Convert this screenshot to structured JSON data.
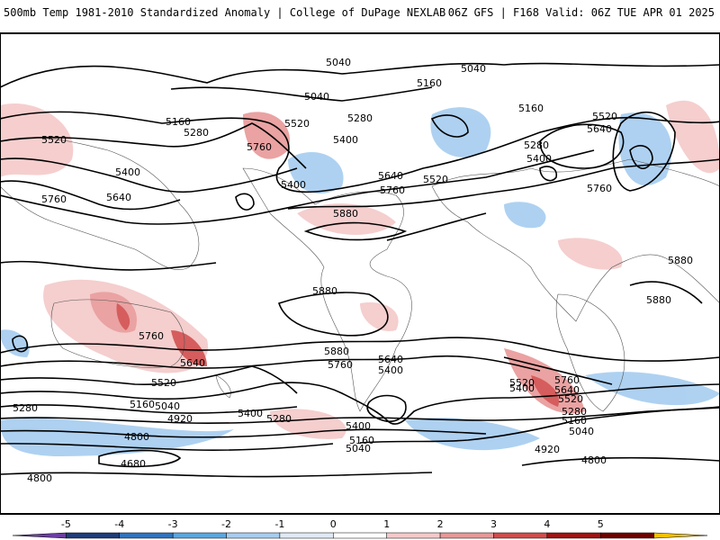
{
  "header": {
    "title": "500mb Temp 1981-2010 Standardized Anomaly | College of DuPage NEXLAB",
    "run_info": "06Z GFS | F168 Valid: 06Z TUE APR 01 2025"
  },
  "colorbar": {
    "ticks": [
      "-5",
      "-4",
      "-3",
      "-2",
      "-1",
      "0",
      "1",
      "2",
      "3",
      "4",
      "5"
    ],
    "colors": [
      "#6a3fa0",
      "#1f3c7a",
      "#2f74c0",
      "#5aa6e0",
      "#a6cdf0",
      "#dfeaf6",
      "#ffffff",
      "#f5c9c9",
      "#e89898",
      "#d24c4c",
      "#a01414",
      "#6e0000",
      "#f0c000"
    ]
  },
  "contours": {
    "labels": [
      "5040",
      "5040",
      "5040",
      "5160",
      "5160",
      "5520",
      "5280",
      "5400",
      "5160",
      "5280",
      "5520",
      "5760",
      "5400",
      "5280",
      "5400",
      "5520",
      "5640",
      "5760",
      "5640",
      "5520",
      "5760",
      "5400",
      "5640",
      "5760",
      "5880",
      "5880",
      "5880",
      "5760",
      "5640",
      "5880",
      "5760",
      "5640",
      "5520",
      "5400",
      "5520",
      "5280",
      "5160",
      "5040",
      "4920",
      "4800",
      "4680",
      "4800",
      "5400",
      "5280",
      "5400",
      "5160",
      "5040",
      "4920",
      "5760",
      "5640",
      "5520",
      "5400",
      "5280",
      "5160",
      "5040",
      "4800",
      "5880"
    ]
  }
}
